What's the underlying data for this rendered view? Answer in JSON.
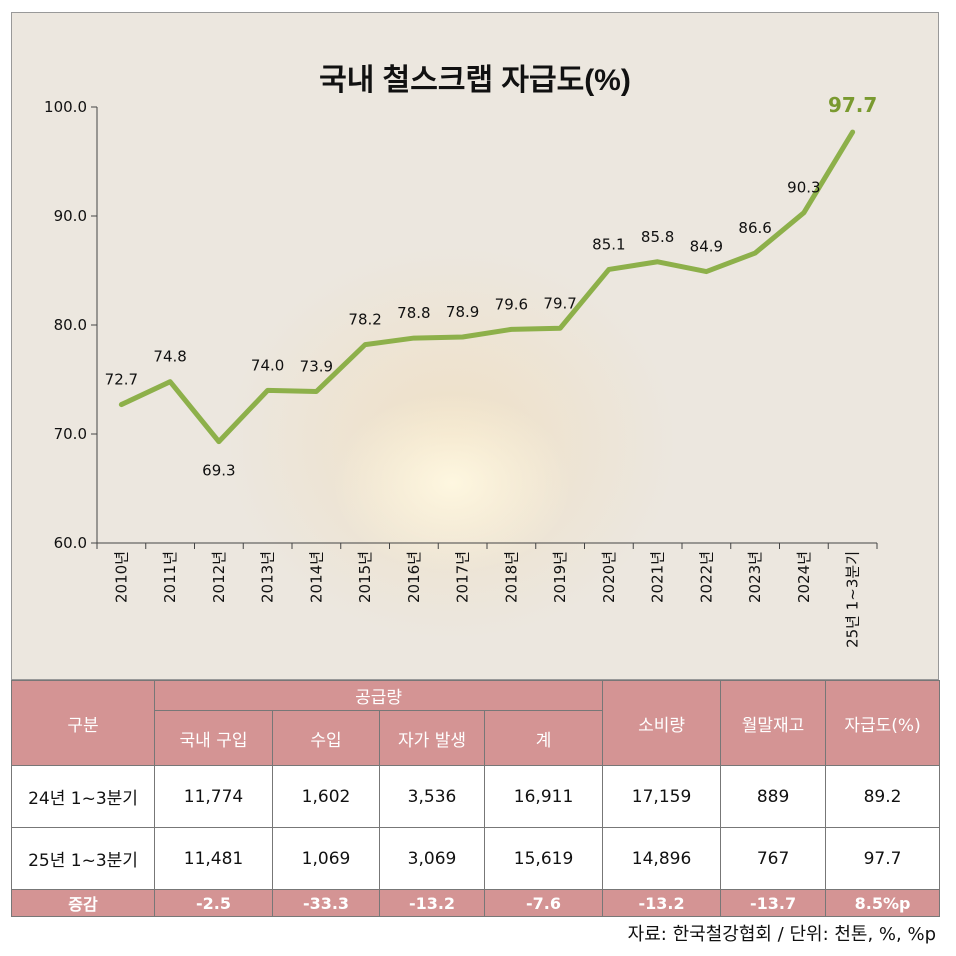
{
  "chart_data": {
    "type": "line",
    "title": "국내 철스크랩 자급도(%)",
    "categories": [
      "2010년",
      "2011년",
      "2012년",
      "2013년",
      "2014년",
      "2015년",
      "2016년",
      "2017년",
      "2018년",
      "2019년",
      "2020년",
      "2021년",
      "2022년",
      "2023년",
      "2024년",
      "25년 1~3분기"
    ],
    "values": [
      72.7,
      74.8,
      69.3,
      74.0,
      73.9,
      78.2,
      78.8,
      78.9,
      79.6,
      79.7,
      85.1,
      85.8,
      84.9,
      86.6,
      90.3,
      97.7
    ],
    "labels": [
      "72.7",
      "74.8",
      "69.3",
      "74.0",
      "73.9",
      "78.2",
      "78.8",
      "78.9",
      "79.6",
      "79.7",
      "85.1",
      "85.8",
      "84.9",
      "86.6",
      "90.3",
      "97.7"
    ],
    "yticks": [
      "60.0",
      "70.0",
      "80.0",
      "90.0",
      "100.0"
    ],
    "ylim": [
      60,
      100
    ],
    "line_color": "#8db04a",
    "highlight_color": "#7a9a30",
    "grid": false
  },
  "table": {
    "col_group": "구분",
    "supply_group": "공급량",
    "supply_cols": [
      "국내 구입",
      "수입",
      "자가 발생",
      "계"
    ],
    "other_cols": [
      "소비량",
      "월말재고",
      "자급도(%)"
    ],
    "rows": [
      {
        "label": "24년 1~3분기",
        "cells": [
          "11,774",
          "1,602",
          "3,536",
          "16,911",
          "17,159",
          "889",
          "89.2"
        ]
      },
      {
        "label": "25년 1~3분기",
        "cells": [
          "11,481",
          "1,069",
          "3,069",
          "15,619",
          "14,896",
          "767",
          "97.7"
        ]
      }
    ],
    "diff": {
      "label": "증감",
      "cells": [
        "-2.5",
        "-33.3",
        "-13.2",
        "-7.6",
        "-13.2",
        "-13.7",
        "8.5%p"
      ]
    }
  },
  "source": "자료: 한국철강협회 / 단위: 천톤, %, %p"
}
